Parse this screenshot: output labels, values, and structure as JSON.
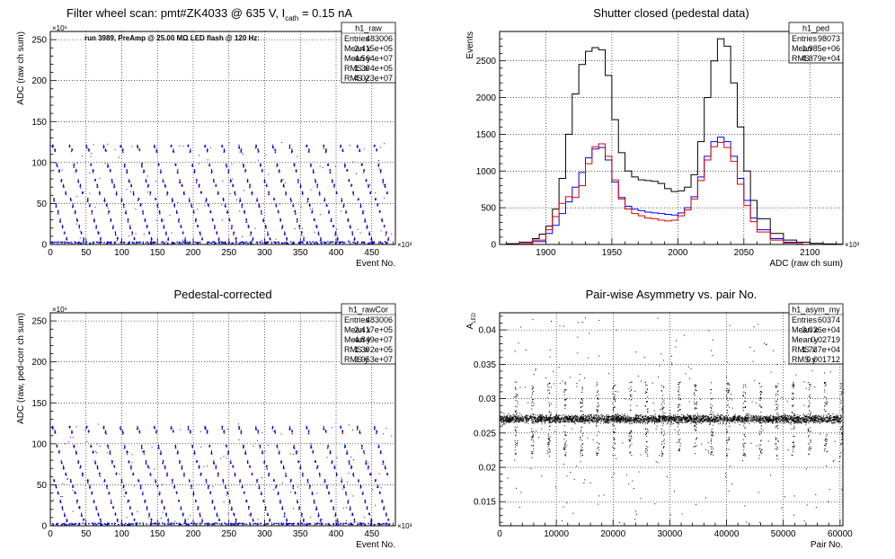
{
  "chart_data": [
    {
      "type": "scatter",
      "title_main": "Filter wheel scan: pmt#ZK4033 @   635 V, I",
      "title_sub": "cath",
      "title_tail": " = 0.15 nA",
      "annotation": "run 3989, PreAmp @ 25.00 MΩ LED flash @  120 Hz:",
      "xlabel": "Event No.",
      "ylabel": "ADC (raw ch sum)",
      "x_exponent": "×10³",
      "y_exponent": "×10⁶",
      "xlim": [
        0,
        483
      ],
      "ylim": [
        0,
        260
      ],
      "xticks": [
        0,
        50,
        100,
        150,
        200,
        250,
        300,
        350,
        400,
        450
      ],
      "yticks": [
        0,
        50,
        100,
        150,
        200,
        250
      ],
      "grid": true,
      "stats": {
        "name": "h1_raw",
        "rows": [
          [
            "Entries",
            "483006"
          ],
          [
            "Mean x",
            "2.415e+05"
          ],
          [
            "Mean y",
            "4.564e+07"
          ],
          [
            "RMS x",
            "1.394e+05"
          ],
          [
            "RMS y",
            "4.023e+07"
          ]
        ]
      },
      "pattern": {
        "period": 23.7,
        "levels": [
          120,
          115,
          97,
          90,
          78,
          72,
          63,
          55,
          48,
          40,
          30,
          22,
          14,
          7
        ],
        "baseline": 2
      },
      "colors": [
        "#0000cc",
        "#dd0000"
      ]
    },
    {
      "type": "line",
      "title": "Shutter closed (pedestal data)",
      "xlabel": "ADC (raw ch sum)",
      "ylabel": "Events",
      "x_exponent": "×10³",
      "xlim": [
        1865,
        2125
      ],
      "ylim": [
        0,
        2900
      ],
      "xticks": [
        1900,
        1950,
        2000,
        2050,
        2100
      ],
      "yticks": [
        0,
        500,
        1000,
        1500,
        2000,
        2500
      ],
      "grid": true,
      "stats": {
        "name": "h1_ped",
        "rows": [
          [
            "Entries",
            "98073"
          ],
          [
            "Mean",
            "1.985e+06"
          ],
          [
            "RMS",
            "4.879e+04"
          ]
        ]
      },
      "series": [
        {
          "color": "#000000",
          "x": [
            1870,
            1880,
            1890,
            1895,
            1900,
            1905,
            1910,
            1915,
            1920,
            1925,
            1930,
            1935,
            1940,
            1945,
            1950,
            1955,
            1960,
            1965,
            1970,
            1975,
            1980,
            1985,
            1990,
            1995,
            2000,
            2005,
            2010,
            2015,
            2020,
            2025,
            2030,
            2035,
            2040,
            2045,
            2050,
            2055,
            2060,
            2070,
            2080,
            2090,
            2100,
            2110,
            2120
          ],
          "y": [
            10,
            30,
            80,
            140,
            250,
            480,
            900,
            1500,
            2050,
            2450,
            2630,
            2680,
            2650,
            2300,
            1700,
            1250,
            1000,
            920,
            880,
            870,
            860,
            830,
            760,
            720,
            730,
            780,
            950,
            1400,
            2000,
            2500,
            2800,
            2700,
            2200,
            1600,
            1000,
            600,
            350,
            150,
            60,
            30,
            15,
            8,
            5
          ]
        },
        {
          "color": "#0000ff",
          "x": [
            1880,
            1890,
            1900,
            1905,
            1910,
            1915,
            1920,
            1925,
            1930,
            1935,
            1940,
            1945,
            1950,
            1955,
            1960,
            1965,
            1970,
            1975,
            1980,
            1985,
            1990,
            1995,
            2000,
            2005,
            2010,
            2015,
            2020,
            2025,
            2030,
            2035,
            2040,
            2045,
            2050,
            2055,
            2060,
            2070,
            2080,
            2090
          ],
          "y": [
            10,
            40,
            150,
            260,
            420,
            580,
            780,
            980,
            1180,
            1300,
            1320,
            1150,
            850,
            640,
            520,
            480,
            460,
            440,
            430,
            420,
            410,
            400,
            430,
            500,
            650,
            920,
            1200,
            1400,
            1460,
            1400,
            1200,
            900,
            600,
            360,
            200,
            80,
            30,
            10
          ]
        },
        {
          "color": "#dd0000",
          "x": [
            1880,
            1890,
            1900,
            1905,
            1910,
            1915,
            1920,
            1925,
            1930,
            1935,
            1940,
            1945,
            1950,
            1955,
            1960,
            1965,
            1970,
            1975,
            1980,
            1985,
            1990,
            1995,
            2000,
            2005,
            2010,
            2015,
            2020,
            2025,
            2030,
            2035,
            2040,
            2045,
            2050,
            2055,
            2060,
            2070,
            2080,
            2090
          ],
          "y": [
            10,
            60,
            200,
            380,
            560,
            650,
            640,
            800,
            1100,
            1330,
            1370,
            1200,
            880,
            620,
            480,
            420,
            390,
            360,
            350,
            330,
            320,
            330,
            390,
            470,
            620,
            870,
            1150,
            1330,
            1390,
            1320,
            1130,
            820,
            530,
            310,
            170,
            60,
            20,
            8
          ]
        }
      ]
    },
    {
      "type": "scatter",
      "title": "Pedestal-corrected",
      "xlabel": "Event No.",
      "ylabel": "ADC (raw, ped-corr ch sum)",
      "x_exponent": "×10³",
      "y_exponent": "×10⁶",
      "xlim": [
        0,
        483
      ],
      "ylim": [
        0,
        260
      ],
      "xticks": [
        0,
        50,
        100,
        150,
        200,
        250,
        300,
        350,
        400,
        450
      ],
      "yticks": [
        0,
        50,
        100,
        150,
        200,
        250
      ],
      "grid": true,
      "stats": {
        "name": "h1_rawCor",
        "rows": [
          [
            "Entries",
            "483006"
          ],
          [
            "Mean x",
            "2.417e+05"
          ],
          [
            "Mean y",
            "4.849e+07"
          ],
          [
            "RMS x",
            "1.392e+05"
          ],
          [
            "RMS y",
            "3.953e+07"
          ]
        ]
      },
      "pattern": {
        "period": 23.7,
        "levels": [
          120,
          115,
          97,
          90,
          78,
          72,
          63,
          55,
          48,
          40,
          30,
          22,
          14,
          7
        ],
        "baseline": 2
      },
      "colors": [
        "#0000cc",
        "#dd0000"
      ]
    },
    {
      "type": "scatter",
      "title": "Pair-wise Asymmetry vs. pair No.",
      "xlabel": "Pair No.",
      "ylabel": "A",
      "ylabel_sub": "LED",
      "xlim": [
        0,
        60500
      ],
      "ylim": [
        0.0115,
        0.0425
      ],
      "xticks": [
        0,
        10000,
        20000,
        30000,
        40000,
        50000,
        60000
      ],
      "yticks": [
        0.015,
        0.02,
        0.025,
        0.03,
        0.035,
        0.04
      ],
      "grid": true,
      "stats": {
        "name": "h1_asym_my",
        "rows": [
          [
            "Entries",
            "60374"
          ],
          [
            "Mean x",
            "3.026e+04"
          ],
          [
            "Mean y",
            "0.02719"
          ],
          [
            "RMS x",
            "1.737e+04"
          ],
          [
            "RMS y",
            "0.001712"
          ]
        ]
      },
      "band": {
        "center": 0.0271,
        "half_width": 0.0009
      },
      "spike_period": 2870,
      "colors": [
        "#000000"
      ]
    }
  ]
}
